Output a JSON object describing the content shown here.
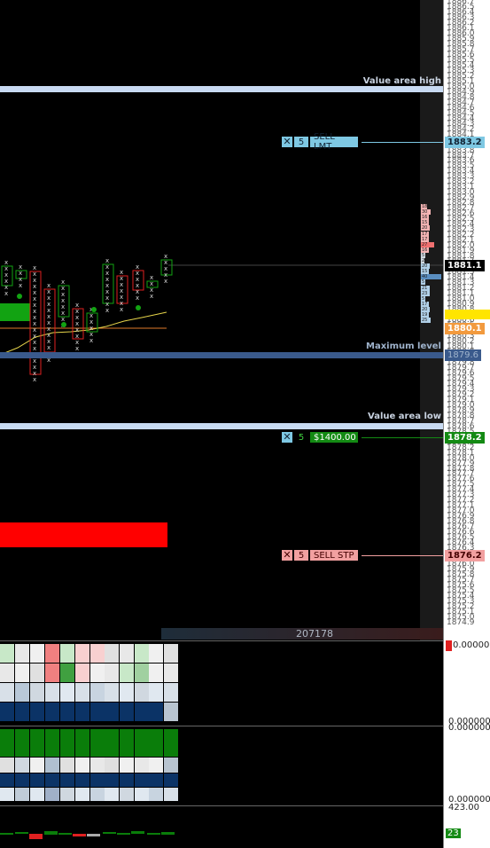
{
  "price_axis": {
    "labels": [
      "1886.7",
      "1886.5",
      "1886.4",
      "1886.3",
      "1886.2",
      "1886.1",
      "1886.0",
      "1885.9",
      "1885.8",
      "1885.7",
      "1885.6",
      "1885.5",
      "1885.4",
      "1885.3",
      "1885.2",
      "1885.1",
      "1885.0",
      "1884.9",
      "1884.8",
      "1884.7",
      "1884.6",
      "1884.5",
      "1884.4",
      "1884.3",
      "1884.2",
      "1884.1",
      "1884.0",
      "1883.9",
      "1883.8",
      "1883.7",
      "1883.6",
      "1883.5",
      "1883.4",
      "1883.3",
      "1883.2",
      "1883.1",
      "1883.0",
      "1882.9",
      "1882.8",
      "1882.7",
      "1882.6",
      "1882.5",
      "1882.4",
      "1882.3",
      "1882.2",
      "1882.1",
      "1882.0",
      "1881.9",
      "1881.8",
      "1881.7",
      "1881.6",
      "1881.5",
      "1881.4",
      "1881.3",
      "1881.2",
      "1881.1",
      "1881.0",
      "1880.9",
      "1880.8",
      "1880.7",
      "1880.6",
      "1880.5",
      "1880.4",
      "1880.3",
      "1880.2",
      "1880.1",
      "1880.0",
      "1879.9",
      "1879.8",
      "1879.7",
      "1879.6",
      "1879.5",
      "1879.4",
      "1879.3",
      "1879.2",
      "1879.1",
      "1879.0",
      "1878.9",
      "1878.8",
      "1878.7",
      "1878.6",
      "1878.5",
      "1878.4",
      "1878.3",
      "1878.2",
      "1878.1",
      "1878.0",
      "1877.9",
      "1877.8",
      "1877.7",
      "1877.6",
      "1877.5",
      "1877.4",
      "1877.3",
      "1877.2",
      "1877.1",
      "1877.0",
      "1876.9",
      "1876.8",
      "1876.7",
      "1876.6",
      "1876.5",
      "1876.4",
      "1876.3",
      "1876.2",
      "1876.1",
      "1876.0",
      "1875.9",
      "1875.8",
      "1875.7",
      "1875.6",
      "1875.5",
      "1875.4",
      "1875.3",
      "1875.2",
      "1875.1",
      "1875.0",
      "1874.9"
    ]
  },
  "bands": {
    "value_area_high": "Value area high",
    "maximum_level": "Maximum level",
    "value_area_low": "Value area low"
  },
  "orders": {
    "sell_limit": {
      "qty": "5",
      "label": "SELL LMT",
      "price": "1883.2"
    },
    "profit_target": {
      "qty": "5",
      "label": "$1400.00",
      "price": "1878.2"
    },
    "sell_stop": {
      "qty": "5",
      "label": "SELL STP",
      "price": "1876.2"
    }
  },
  "price_tags": {
    "current": "1881.1",
    "orange": "1880.1",
    "blue": "1879.6"
  },
  "volume_total": "207178",
  "profile_numbers": [
    "18",
    "30",
    "16",
    "15",
    "20",
    "17",
    "17",
    "27",
    "16",
    "5",
    "2",
    "20",
    "15",
    "40",
    "5",
    "21",
    "23",
    "5",
    "17",
    "20",
    "19",
    "25"
  ],
  "indicator_axis": {
    "pane1_top": "0.000000",
    "pane1_bottom_a": "0.000000",
    "pane1_bottom_b": "0.000000",
    "pane2_bottom": "0.000000",
    "pane3_top": "423.00",
    "pane3_bottom": "23"
  },
  "icons": {
    "close": "close-icon",
    "marker": "red-marker-icon"
  },
  "colors": {
    "sell_limit": "#7ec8e3",
    "profit": "#138a13",
    "sell_stop": "#f2a0a0",
    "band_light": "#c8daf2",
    "band_max": "#3a5a8c"
  }
}
